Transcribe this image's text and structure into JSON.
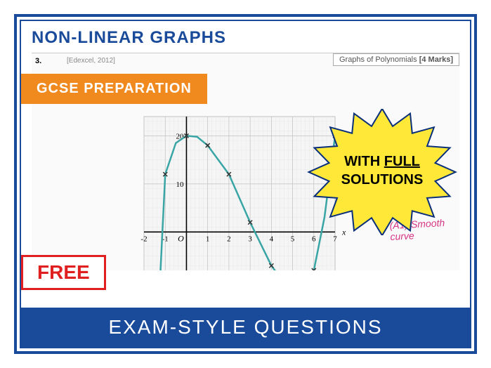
{
  "title": "NON-LINEAR GRAPHS",
  "badges": {
    "gcse": "GCSE PREPARATION",
    "free": "FREE"
  },
  "footer": "EXAM-STYLE QUESTIONS",
  "starburst": {
    "line1": "WITH ",
    "line1_underlined": "FULL",
    "line2": "SOLUTIONS",
    "fill": "#ffe838",
    "stroke": "#0a2f7a"
  },
  "worksheet": {
    "question_num": "3.",
    "exam_board": "[Edexcel, 2012]",
    "topic": "Graphs of Polynomials",
    "marks": "[4 Marks]",
    "annotation_top": "(A1) Smooth",
    "annotation_bottom": "curve"
  },
  "chart": {
    "type": "line",
    "background_color": "#f5f5f5",
    "grid_minor_color": "#e8e8e8",
    "grid_major_color": "#c0c0c0",
    "axis_color": "#000000",
    "curve_color": "#3aa5a5",
    "curve_width": 2.5,
    "marker_style": "x",
    "marker_color": "#333333",
    "marker_size": 6,
    "xlim": [
      -2,
      7
    ],
    "ylim": [
      -15,
      24
    ],
    "xtick_step": 1,
    "ytick_step": 10,
    "xlabel": "x",
    "origin_label": "O",
    "data_points": [
      {
        "x": -1,
        "y": 12
      },
      {
        "x": 0,
        "y": 20
      },
      {
        "x": 1,
        "y": 18
      },
      {
        "x": 2,
        "y": 12
      },
      {
        "x": 3,
        "y": 2
      },
      {
        "x": 4,
        "y": -7
      },
      {
        "x": 5,
        "y": -13
      },
      {
        "x": 6,
        "y": -8
      },
      {
        "x": 7,
        "y": 20
      }
    ],
    "curve_path": [
      {
        "x": -1.3,
        "y": -15
      },
      {
        "x": -1,
        "y": 12
      },
      {
        "x": -0.5,
        "y": 18.5
      },
      {
        "x": 0,
        "y": 20
      },
      {
        "x": 0.5,
        "y": 19.8
      },
      {
        "x": 1,
        "y": 18
      },
      {
        "x": 2,
        "y": 12
      },
      {
        "x": 3,
        "y": 2
      },
      {
        "x": 4,
        "y": -7
      },
      {
        "x": 5,
        "y": -13
      },
      {
        "x": 5.5,
        "y": -13.2
      },
      {
        "x": 6,
        "y": -8
      },
      {
        "x": 6.5,
        "y": 3
      },
      {
        "x": 7,
        "y": 20
      }
    ]
  }
}
